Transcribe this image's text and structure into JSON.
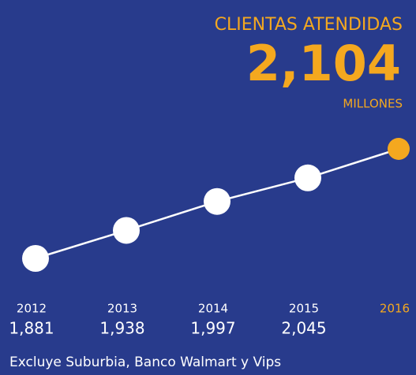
{
  "chart_data": {
    "type": "line",
    "title": "CLIENTAS ATENDIDAS",
    "unit_label": "MILLONES",
    "categories": [
      "2012",
      "2013",
      "2014",
      "2015",
      "2016"
    ],
    "values": [
      1881,
      1938,
      1997,
      2045,
      2104
    ],
    "value_labels": [
      "1,881",
      "1,938",
      "1,997",
      "2,045",
      "2,104"
    ],
    "color": "#ffffff",
    "highlight_color": "#f4a81f",
    "background": "#283b8c",
    "footnote": "Excluye Suburbia, Banco Walmart y Vips"
  }
}
